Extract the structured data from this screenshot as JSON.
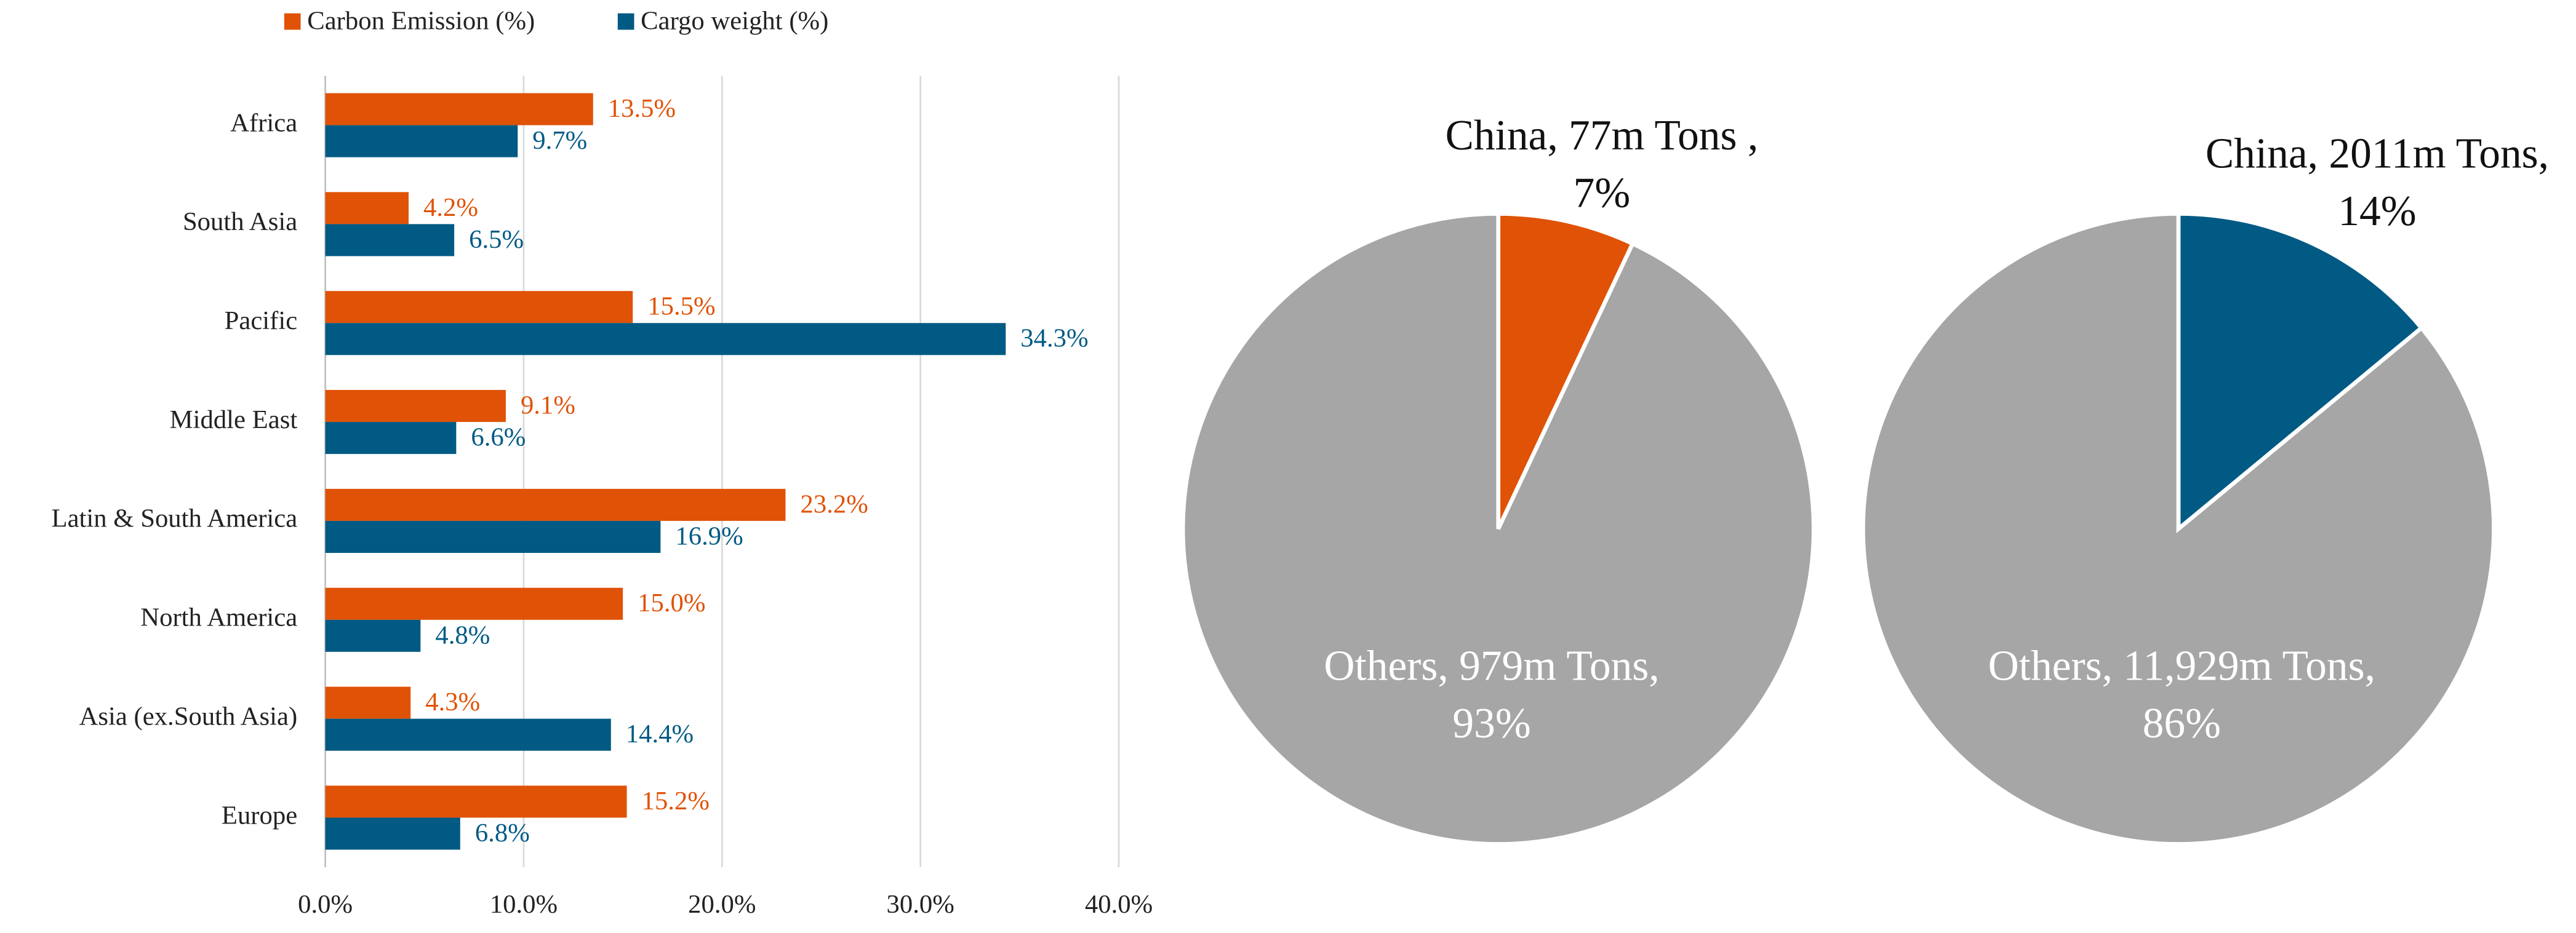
{
  "chart_data": [
    {
      "type": "hbar",
      "categories": [
        "Africa",
        "South Asia",
        "Pacific",
        "Middle East",
        "Latin & South America",
        "North America",
        "Asia (ex.South Asia)",
        "Europe"
      ],
      "series": [
        {
          "name": "Carbon Emission (%)",
          "color": "#e05206",
          "values": [
            13.5,
            4.2,
            15.5,
            9.1,
            23.2,
            15.0,
            4.3,
            15.2
          ],
          "value_labels": [
            "13.5%",
            "4.2%",
            "15.5%",
            "9.1%",
            "23.2%",
            "15.0%",
            "4.3%",
            "15.2%"
          ]
        },
        {
          "name": "Cargo weight (%)",
          "color": "#005a84",
          "values": [
            9.7,
            6.5,
            34.3,
            6.6,
            16.9,
            4.8,
            14.4,
            6.8
          ],
          "value_labels": [
            "9.7%",
            "6.5%",
            "34.3%",
            "6.6%",
            "16.9%",
            "4.8%",
            "14.4%",
            "6.8%"
          ]
        }
      ],
      "xlim": [
        0,
        40
      ],
      "xticks": [
        {
          "value": 0,
          "label": "0.0%"
        },
        {
          "value": 10,
          "label": "10.0%"
        },
        {
          "value": 20,
          "label": "20.0%"
        },
        {
          "value": 30,
          "label": "30.0%"
        },
        {
          "value": 40,
          "label": "40.0%"
        }
      ],
      "grid": true,
      "legend": "top"
    },
    {
      "type": "pie",
      "values": [
        7,
        93
      ],
      "colors": [
        "#e05206",
        "#a6a6a6"
      ],
      "value_labels": [
        "China, 77m Tons , 7%",
        "Others, 979m Tons, 93%"
      ]
    },
    {
      "type": "pie",
      "values": [
        14,
        86
      ],
      "colors": [
        "#005a84",
        "#a6a6a6"
      ],
      "value_labels": [
        "China, 2011m Tons, 14%",
        "Others, 11,929m Tons, 86%"
      ]
    }
  ]
}
